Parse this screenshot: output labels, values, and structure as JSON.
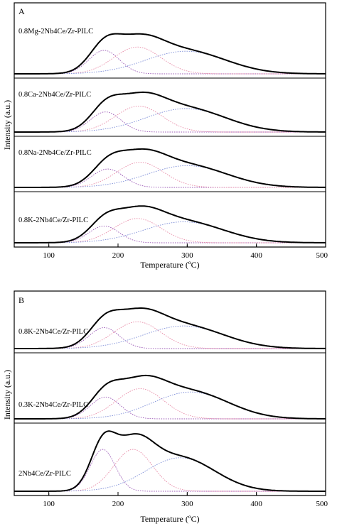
{
  "chart_data": [
    {
      "type": "line",
      "panel_label": "A",
      "xlabel": "Temperature (ºC)",
      "ylabel": "Intensity (a.u.)",
      "xlim": [
        50,
        500
      ],
      "xticks": [
        "100",
        "200",
        "300",
        "400",
        "500"
      ],
      "stacked_traces": [
        {
          "name": "0.8Mg-2Nb4Ce/Zr-PILC",
          "components": [
            {
              "center": 180,
              "width": 22,
              "height": 0.28,
              "color": "#9b59b6"
            },
            {
              "center": 228,
              "width": 34,
              "height": 0.32,
              "color": "#e88ca8"
            },
            {
              "center": 298,
              "width": 58,
              "height": 0.27,
              "color": "#7f8fd8"
            }
          ]
        },
        {
          "name": "0.8Ca-2Nb4Ce/Zr-PILC",
          "components": [
            {
              "center": 182,
              "width": 22,
              "height": 0.24,
              "color": "#9b59b6"
            },
            {
              "center": 230,
              "width": 34,
              "height": 0.31,
              "color": "#e88ca8"
            },
            {
              "center": 298,
              "width": 58,
              "height": 0.28,
              "color": "#7f8fd8"
            }
          ]
        },
        {
          "name": "0.8Na-2Nb4Ce/Zr-PILC",
          "components": [
            {
              "center": 185,
              "width": 23,
              "height": 0.22,
              "color": "#9b59b6"
            },
            {
              "center": 232,
              "width": 34,
              "height": 0.3,
              "color": "#e88ca8"
            },
            {
              "center": 300,
              "width": 58,
              "height": 0.26,
              "color": "#7f8fd8"
            }
          ]
        },
        {
          "name": "0.8K-2Nb4Ce/Zr-PILC",
          "components": [
            {
              "center": 180,
              "width": 22,
              "height": 0.2,
              "color": "#9b59b6"
            },
            {
              "center": 228,
              "width": 34,
              "height": 0.29,
              "color": "#e88ca8"
            },
            {
              "center": 295,
              "width": 58,
              "height": 0.25,
              "color": "#7f8fd8"
            }
          ]
        }
      ]
    },
    {
      "type": "line",
      "panel_label": "B",
      "xlabel": "Temperature (ºC)",
      "ylabel": "Intensity (a.u.)",
      "xlim": [
        50,
        500
      ],
      "xticks": [
        "100",
        "200",
        "300",
        "400",
        "500"
      ],
      "stacked_traces": [
        {
          "name": "0.8K-2Nb4Ce/Zr-PILC",
          "components": [
            {
              "center": 180,
              "width": 22,
              "height": 0.25,
              "color": "#9b59b6"
            },
            {
              "center": 228,
              "width": 34,
              "height": 0.32,
              "color": "#e88ca8"
            },
            {
              "center": 295,
              "width": 58,
              "height": 0.27,
              "color": "#7f8fd8"
            }
          ]
        },
        {
          "name": "0.3K-2Nb4Ce/Zr-PILC",
          "components": [
            {
              "center": 182,
              "width": 22,
              "height": 0.26,
              "color": "#9b59b6"
            },
            {
              "center": 232,
              "width": 34,
              "height": 0.36,
              "color": "#e88ca8"
            },
            {
              "center": 305,
              "width": 55,
              "height": 0.32,
              "color": "#7f8fd8"
            }
          ]
        },
        {
          "name": "2Nb4Ce/Zr-PILC",
          "components": [
            {
              "center": 178,
              "width": 18,
              "height": 0.5,
              "color": "#9b59b6"
            },
            {
              "center": 222,
              "width": 28,
              "height": 0.5,
              "color": "#e88ca8"
            },
            {
              "center": 290,
              "width": 50,
              "height": 0.4,
              "color": "#7f8fd8"
            }
          ]
        }
      ]
    }
  ]
}
